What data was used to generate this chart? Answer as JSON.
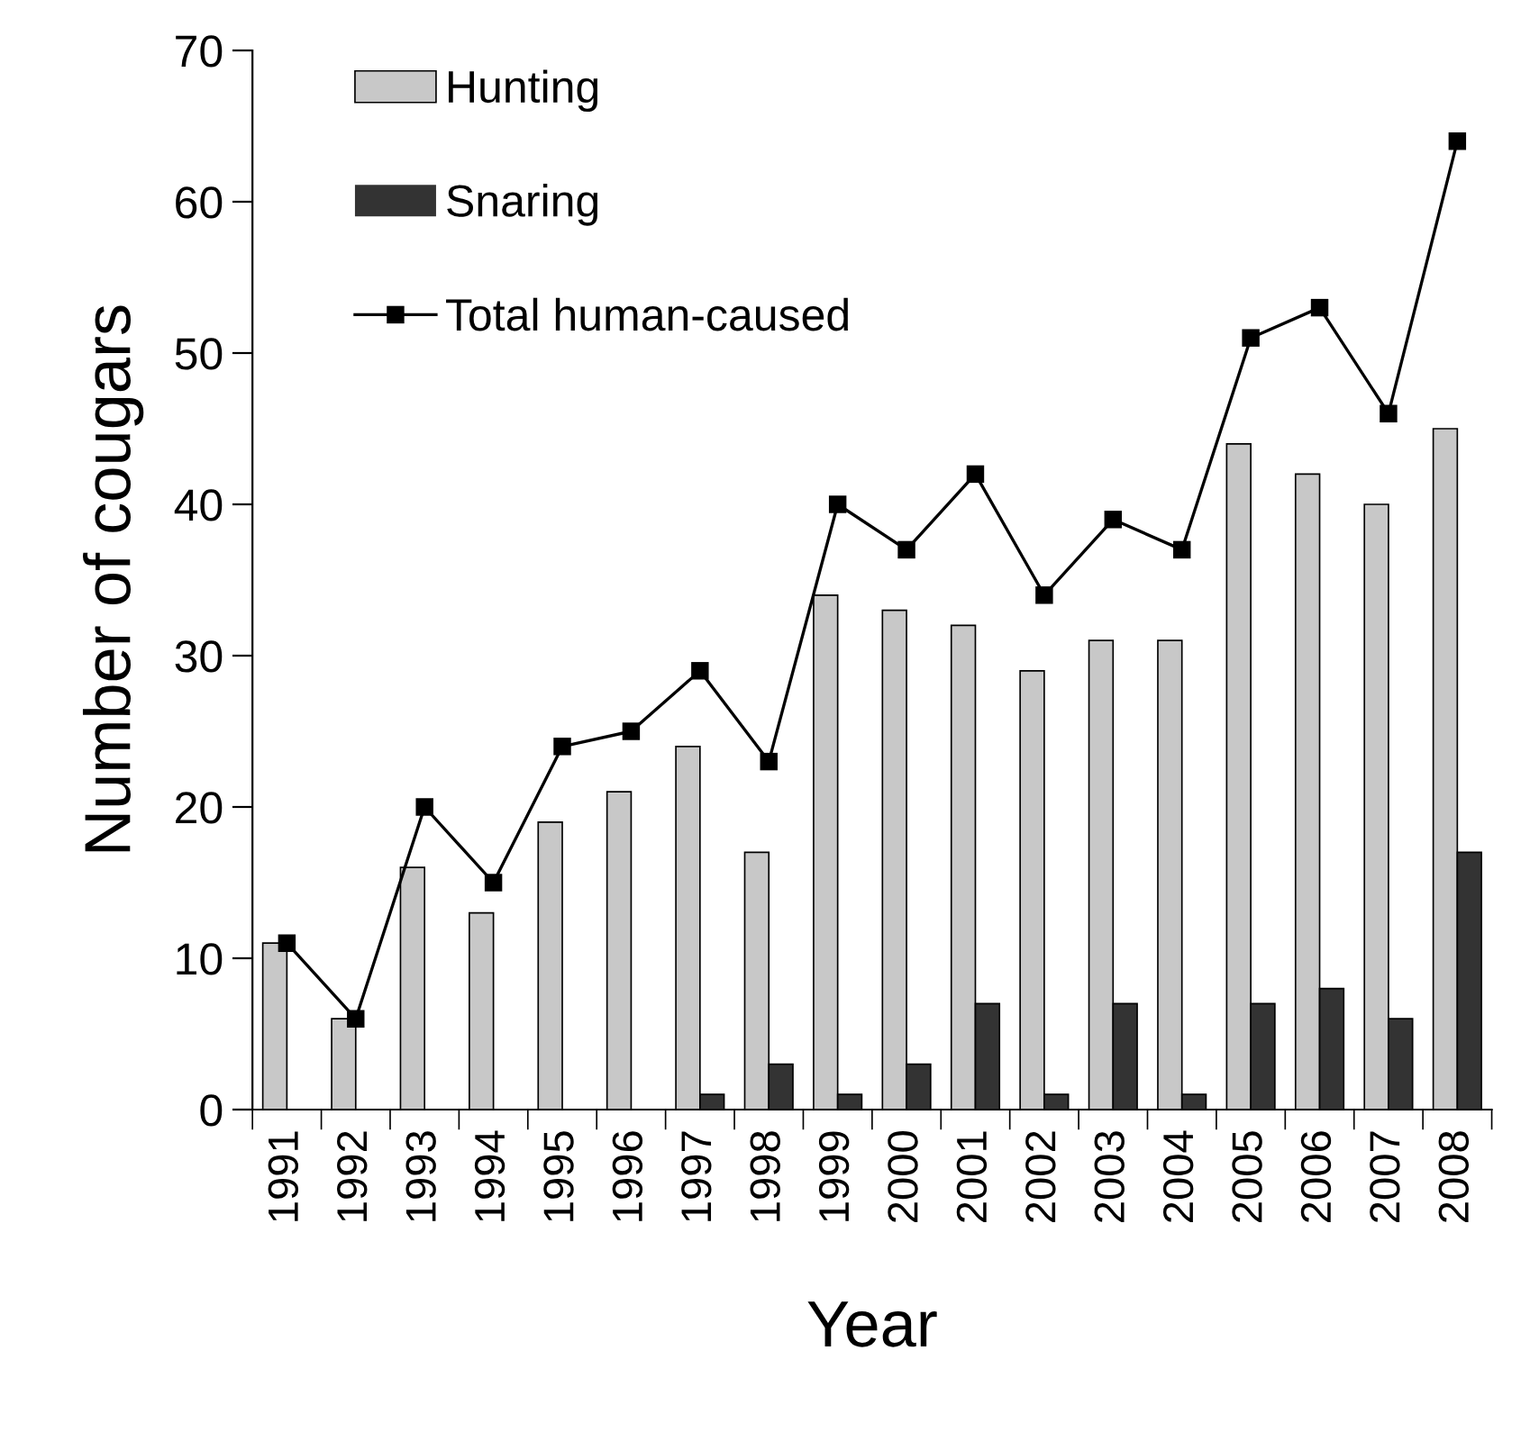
{
  "chart_data": {
    "type": "bar",
    "xlabel": "Year",
    "ylabel": "Number of cougars",
    "categories": [
      "1991",
      "1992",
      "1993",
      "1994",
      "1995",
      "1996",
      "1997",
      "1998",
      "1999",
      "2000",
      "2001",
      "2002",
      "2003",
      "2004",
      "2005",
      "2006",
      "2007",
      "2008"
    ],
    "series": [
      {
        "name": "Hunting",
        "color": "#c8c8c8",
        "values": [
          11,
          6,
          16,
          13,
          19,
          21,
          24,
          17,
          34,
          33,
          32,
          29,
          31,
          31,
          44,
          42,
          40,
          45
        ]
      },
      {
        "name": "Snaring",
        "color": "#333333",
        "values": [
          0,
          0,
          0,
          0,
          0,
          0,
          1,
          3,
          1,
          3,
          7,
          1,
          7,
          1,
          7,
          8,
          6,
          17
        ]
      },
      {
        "name": "Total human-caused",
        "type": "line",
        "marker": "square",
        "color": "#000000",
        "values": [
          11,
          6,
          20,
          15,
          24,
          25,
          29,
          23,
          40,
          37,
          42,
          34,
          39,
          37,
          51,
          53,
          46,
          64
        ]
      }
    ],
    "ylim": [
      0,
      70
    ],
    "yticks": [
      0,
      10,
      20,
      30,
      40,
      50,
      60,
      70
    ],
    "legend": "top left"
  }
}
